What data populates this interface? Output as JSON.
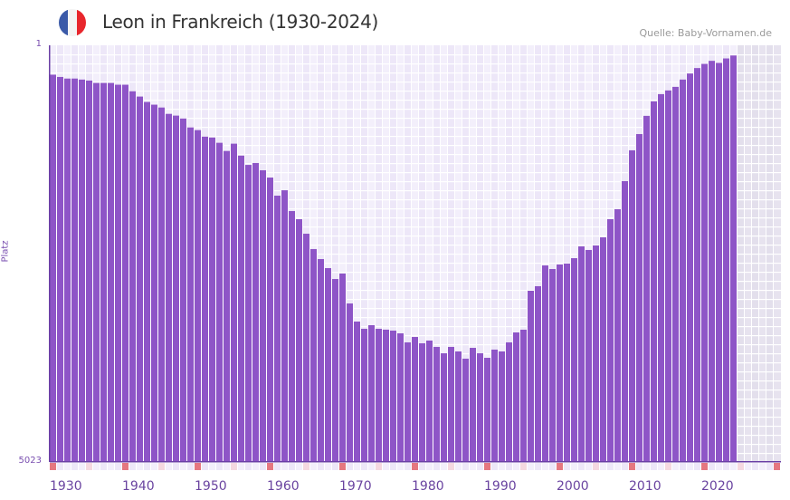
{
  "header": {
    "title": "Leon in Frankreich (1930-2024)",
    "source": "Quelle: Baby-Vornamen.de",
    "flag_icon": "france-flag-icon",
    "flag_colors": [
      "#3b5aa8",
      "#f4f4f4",
      "#e8262c"
    ]
  },
  "colors": {
    "bar": "#8e55c7",
    "axis_text": "#7a4fb0",
    "decade_marker": "#e57780",
    "half_decade_marker": "#f5d8e0"
  },
  "chart_data": {
    "type": "bar",
    "title": "Leon in Frankreich (1930-2024)",
    "xlabel": "",
    "ylabel": "Platz",
    "y_scale": "sqrt-inverted",
    "ylim": [
      1,
      5023
    ],
    "y_ticks": [
      "1",
      "5023"
    ],
    "x_range": [
      1930,
      2030
    ],
    "x_ticks": [
      "1930",
      "1940",
      "1950",
      "1960",
      "1970",
      "1980",
      "1990",
      "2000",
      "2010",
      "2020"
    ],
    "grid": true,
    "categories": [
      1930,
      1931,
      1932,
      1933,
      1934,
      1935,
      1936,
      1937,
      1938,
      1939,
      1940,
      1941,
      1942,
      1943,
      1944,
      1945,
      1946,
      1947,
      1948,
      1949,
      1950,
      1951,
      1952,
      1953,
      1954,
      1955,
      1956,
      1957,
      1958,
      1959,
      1960,
      1961,
      1962,
      1963,
      1964,
      1965,
      1966,
      1967,
      1968,
      1969,
      1970,
      1971,
      1972,
      1973,
      1974,
      1975,
      1976,
      1977,
      1978,
      1979,
      1980,
      1981,
      1982,
      1983,
      1984,
      1985,
      1986,
      1987,
      1988,
      1989,
      1990,
      1991,
      1992,
      1993,
      1994,
      1995,
      1996,
      1997,
      1998,
      1999,
      2000,
      2001,
      2002,
      2003,
      2004,
      2005,
      2006,
      2007,
      2008,
      2009,
      2010,
      2011,
      2012,
      2013,
      2014,
      2015,
      2016,
      2017,
      2018,
      2019,
      2020,
      2021,
      2022,
      2023,
      2024
    ],
    "values": [
      26,
      30,
      33,
      33,
      35,
      37,
      42,
      42,
      42,
      46,
      46,
      62,
      77,
      94,
      103,
      113,
      137,
      144,
      156,
      196,
      209,
      242,
      247,
      276,
      324,
      281,
      353,
      415,
      402,
      453,
      507,
      655,
      609,
      796,
      876,
      1028,
      1202,
      1323,
      1437,
      1581,
      1508,
      1929,
      2209,
      2326,
      2267,
      2326,
      2340,
      2356,
      2401,
      2554,
      2462,
      2570,
      2523,
      2633,
      2745,
      2633,
      2712,
      2842,
      2649,
      2745,
      2826,
      2680,
      2712,
      2554,
      2386,
      2341,
      1744,
      1680,
      1403,
      1449,
      1391,
      1379,
      1312,
      1171,
      1213,
      1160,
      1068,
      876,
      778,
      535,
      320,
      229,
      145,
      92,
      70,
      60,
      51,
      35,
      24,
      16,
      11,
      8,
      10,
      6,
      4
    ]
  }
}
